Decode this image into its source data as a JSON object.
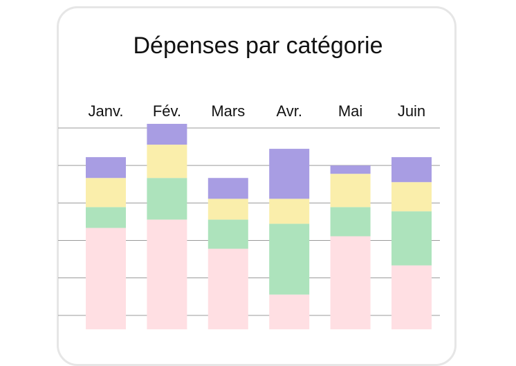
{
  "chart_data": {
    "type": "bar",
    "stacked": true,
    "title": "Dépenses par catégorie",
    "categories": [
      "Janv.",
      "Fév.",
      "Mars",
      "Avr.",
      "Mai",
      "Juin"
    ],
    "series": [
      {
        "values": [
          30,
          32,
          25,
          14,
          28,
          21
        ],
        "color": "#ffdfe3"
      },
      {
        "values": [
          5,
          10,
          7,
          17,
          7,
          13
        ],
        "color": "#ade3bc"
      },
      {
        "values": [
          7,
          8,
          5,
          6,
          8,
          7
        ],
        "color": "#faeeab"
      },
      {
        "values": [
          5,
          5,
          5,
          12,
          2,
          6
        ],
        "color": "#a89de3"
      }
    ],
    "ylim": [
      0,
      54
    ],
    "grid": true,
    "category_labels_position": "top"
  }
}
